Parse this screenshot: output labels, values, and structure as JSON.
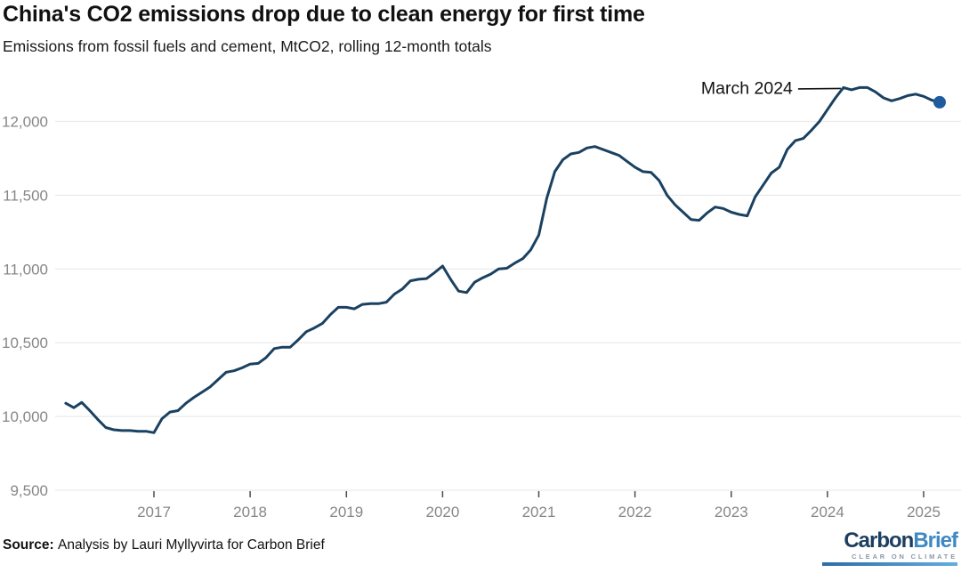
{
  "header": {
    "title": "China's CO2 emissions drop due to clean energy for first time",
    "subtitle": "Emissions from fossil fuels and cement, MtCO2, rolling 12-month totals"
  },
  "source": {
    "label": "Source:",
    "text": "Analysis by Lauri Myllyvirta for Carbon Brief"
  },
  "logo": {
    "word1": "Carbon",
    "word2": "Brief",
    "tagline": "CLEAR ON CLIMATE"
  },
  "colors": {
    "line": "#1a4161",
    "marker": "#1e5c9e",
    "gridline": "#eaeaea",
    "axis_text": "#878787",
    "tick": "#4d4d4d",
    "annotation": "#111111",
    "title_text": "#111111",
    "logo_navy": "#1d3e60",
    "logo_blue": "#3e88c4",
    "logo_gray": "#8a99a8"
  },
  "chart_data": {
    "type": "line",
    "title": "China's CO2 emissions drop due to clean energy for first time",
    "subtitle": "Emissions from fossil fuels and cement, MtCO2, rolling 12-month totals",
    "unit": "MtCO2",
    "grid": "horizontal-only",
    "legend": "none",
    "x_axis": {
      "ticks": [
        2017,
        2018,
        2019,
        2020,
        2021,
        2022,
        2023,
        2024,
        2025
      ]
    },
    "y_axis": {
      "ticks": [
        9500,
        10000,
        10500,
        11000,
        11500,
        12000
      ],
      "tick_labels": [
        "9,500",
        "10,000",
        "10,500",
        "11,000",
        "11,500",
        "12,000"
      ],
      "range": [
        9500,
        12000
      ]
    },
    "annotation": {
      "label": "March 2024",
      "target_x": "2024-03",
      "target_value": 12230
    },
    "end_marker": true,
    "series": [
      {
        "name": "China CO2 emissions, rolling 12-month total",
        "points": [
          [
            "2016-02",
            10090
          ],
          [
            "2016-03",
            10060
          ],
          [
            "2016-04",
            10095
          ],
          [
            "2016-05",
            10040
          ],
          [
            "2016-06",
            9980
          ],
          [
            "2016-07",
            9925
          ],
          [
            "2016-08",
            9910
          ],
          [
            "2016-09",
            9905
          ],
          [
            "2016-10",
            9905
          ],
          [
            "2016-11",
            9900
          ],
          [
            "2016-12",
            9900
          ],
          [
            "2017-01",
            9890
          ],
          [
            "2017-02",
            9985
          ],
          [
            "2017-03",
            10030
          ],
          [
            "2017-04",
            10040
          ],
          [
            "2017-05",
            10090
          ],
          [
            "2017-06",
            10130
          ],
          [
            "2017-07",
            10165
          ],
          [
            "2017-08",
            10200
          ],
          [
            "2017-09",
            10250
          ],
          [
            "2017-10",
            10300
          ],
          [
            "2017-11",
            10310
          ],
          [
            "2017-12",
            10330
          ],
          [
            "2018-01",
            10355
          ],
          [
            "2018-02",
            10360
          ],
          [
            "2018-03",
            10400
          ],
          [
            "2018-04",
            10460
          ],
          [
            "2018-05",
            10470
          ],
          [
            "2018-06",
            10470
          ],
          [
            "2018-07",
            10520
          ],
          [
            "2018-08",
            10575
          ],
          [
            "2018-09",
            10600
          ],
          [
            "2018-10",
            10630
          ],
          [
            "2018-11",
            10690
          ],
          [
            "2018-12",
            10740
          ],
          [
            "2019-01",
            10740
          ],
          [
            "2019-02",
            10730
          ],
          [
            "2019-03",
            10760
          ],
          [
            "2019-04",
            10765
          ],
          [
            "2019-05",
            10765
          ],
          [
            "2019-06",
            10775
          ],
          [
            "2019-07",
            10830
          ],
          [
            "2019-08",
            10865
          ],
          [
            "2019-09",
            10920
          ],
          [
            "2019-10",
            10930
          ],
          [
            "2019-11",
            10935
          ],
          [
            "2019-12",
            10975
          ],
          [
            "2020-01",
            11020
          ],
          [
            "2020-02",
            10930
          ],
          [
            "2020-03",
            10850
          ],
          [
            "2020-04",
            10840
          ],
          [
            "2020-05",
            10910
          ],
          [
            "2020-06",
            10940
          ],
          [
            "2020-07",
            10965
          ],
          [
            "2020-08",
            11000
          ],
          [
            "2020-09",
            11005
          ],
          [
            "2020-10",
            11040
          ],
          [
            "2020-11",
            11070
          ],
          [
            "2020-12",
            11130
          ],
          [
            "2021-01",
            11230
          ],
          [
            "2021-02",
            11480
          ],
          [
            "2021-03",
            11660
          ],
          [
            "2021-04",
            11740
          ],
          [
            "2021-05",
            11780
          ],
          [
            "2021-06",
            11790
          ],
          [
            "2021-07",
            11820
          ],
          [
            "2021-08",
            11830
          ],
          [
            "2021-09",
            11810
          ],
          [
            "2021-10",
            11790
          ],
          [
            "2021-11",
            11770
          ],
          [
            "2021-12",
            11730
          ],
          [
            "2022-01",
            11690
          ],
          [
            "2022-02",
            11660
          ],
          [
            "2022-03",
            11655
          ],
          [
            "2022-04",
            11600
          ],
          [
            "2022-05",
            11500
          ],
          [
            "2022-06",
            11435
          ],
          [
            "2022-07",
            11385
          ],
          [
            "2022-08",
            11335
          ],
          [
            "2022-09",
            11330
          ],
          [
            "2022-10",
            11380
          ],
          [
            "2022-11",
            11420
          ],
          [
            "2022-12",
            11410
          ],
          [
            "2023-01",
            11385
          ],
          [
            "2023-02",
            11370
          ],
          [
            "2023-03",
            11360
          ],
          [
            "2023-04",
            11490
          ],
          [
            "2023-05",
            11570
          ],
          [
            "2023-06",
            11650
          ],
          [
            "2023-07",
            11690
          ],
          [
            "2023-08",
            11810
          ],
          [
            "2023-09",
            11870
          ],
          [
            "2023-10",
            11885
          ],
          [
            "2023-11",
            11940
          ],
          [
            "2023-12",
            12000
          ],
          [
            "2024-01",
            12080
          ],
          [
            "2024-02",
            12160
          ],
          [
            "2024-03",
            12230
          ],
          [
            "2024-04",
            12215
          ],
          [
            "2024-05",
            12230
          ],
          [
            "2024-06",
            12230
          ],
          [
            "2024-07",
            12200
          ],
          [
            "2024-08",
            12160
          ],
          [
            "2024-09",
            12140
          ],
          [
            "2024-10",
            12155
          ],
          [
            "2024-11",
            12175
          ],
          [
            "2024-12",
            12185
          ],
          [
            "2025-01",
            12170
          ],
          [
            "2025-02",
            12145
          ],
          [
            "2025-03",
            12130
          ]
        ]
      }
    ]
  }
}
